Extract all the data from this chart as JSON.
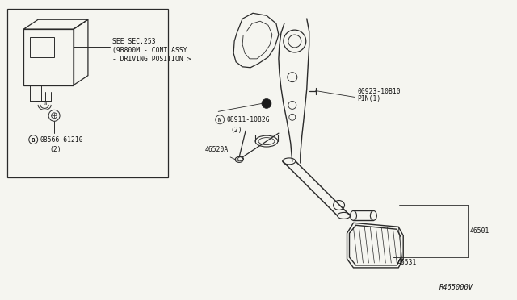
{
  "bg_color": "#f5f5f0",
  "line_color": "#2a2a2a",
  "text_color": "#111111",
  "font_size": 5.8,
  "diagram_ref": "R465000V",
  "label_see_sec": "SEE SEC.253",
  "label_9b800m": "(9B800M - CONT ASSY",
  "label_drv": "- DRIVING POSITION >",
  "label_b": "B",
  "label_08566": "08566-61210",
  "label_2a": "(2)",
  "label_n": "N",
  "label_08911": "08911-1082G",
  "label_2b": "(2)",
  "label_46520a": "46520A",
  "label_pin_num": "00923-10B10",
  "label_pin": "PIN(1)",
  "label_46501": "46501",
  "label_46531": "46531"
}
